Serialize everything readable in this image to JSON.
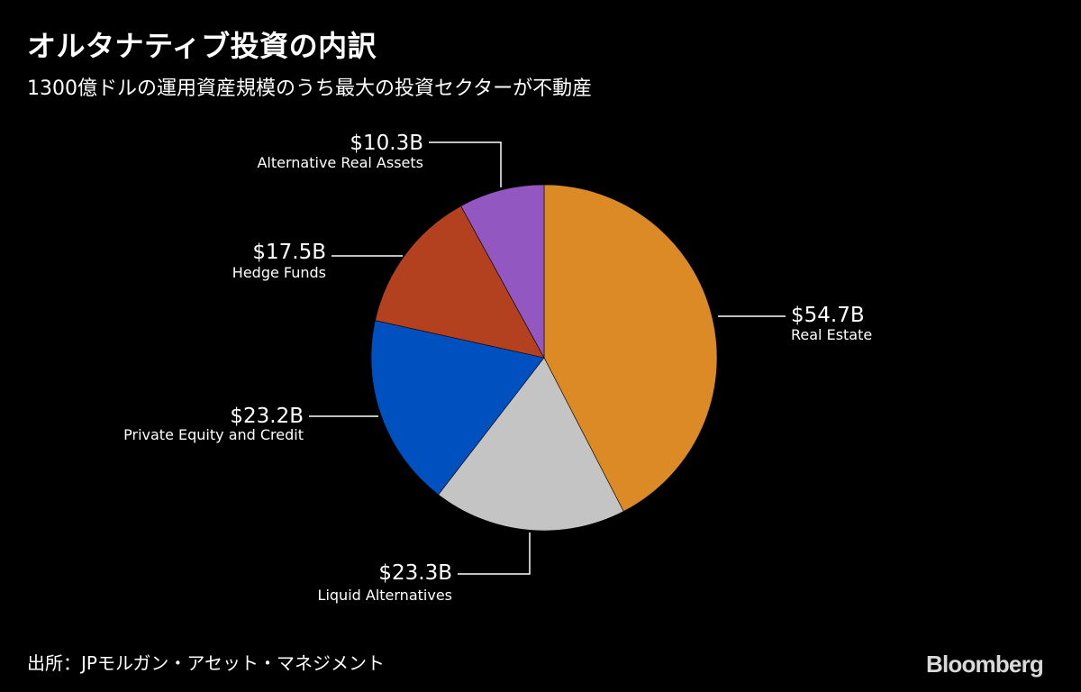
{
  "header": {
    "title": "オルタナティブ投資の内訳",
    "subtitle": "1300億ドルの運用資産規模のうち最大の投資セクターが不動産"
  },
  "footer": {
    "source": "出所：JPモルガン・アセット・マネジメント",
    "brand": "Bloomberg"
  },
  "chart_data": {
    "type": "pie",
    "title": "",
    "start_angle": "12 o'clock",
    "direction": "clockwise",
    "slices": [
      {
        "label": "Real Estate",
        "value": 54.7,
        "value_label": "$54.7B",
        "color": "#DC8A26"
      },
      {
        "label": "Liquid Alternatives",
        "value": 23.3,
        "value_label": "$23.3B",
        "color": "#C4C4C4"
      },
      {
        "label": "Private Equity and Credit",
        "value": 23.2,
        "value_label": "$23.2B",
        "color": "#0050C0"
      },
      {
        "label": "Hedge Funds",
        "value": 17.5,
        "value_label": "$17.5B",
        "color": "#B3401E"
      },
      {
        "label": "Alternative Real Assets",
        "value": 10.3,
        "value_label": "$10.3B",
        "color": "#9257C0"
      }
    ]
  }
}
